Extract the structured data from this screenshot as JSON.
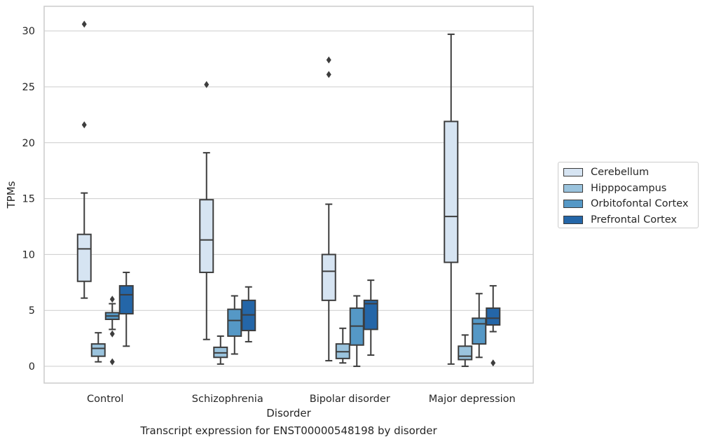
{
  "caption": "Transcript expression for ENST00000548198 by disorder",
  "chart_data": {
    "type": "box",
    "xlabel": "Disorder",
    "ylabel": "TPMs",
    "ylim": [
      -1.5,
      32.2
    ],
    "yticks": [
      0,
      5,
      10,
      15,
      20,
      25,
      30
    ],
    "grid": "horizontal",
    "legend_position": "right",
    "categories": [
      "Control",
      "Schizophrenia",
      "Bipolar disorder",
      "Major depression"
    ],
    "series": [
      {
        "name": "Cerebellum",
        "color": "#d6e4f2",
        "boxes": [
          {
            "whislo": 6.1,
            "q1": 7.6,
            "med": 10.5,
            "q3": 11.8,
            "whishi": 15.5,
            "fliers": [
              21.6,
              30.6
            ]
          },
          {
            "whislo": 2.4,
            "q1": 8.4,
            "med": 11.3,
            "q3": 14.9,
            "whishi": 19.1,
            "fliers": [
              25.2
            ]
          },
          {
            "whislo": 0.5,
            "q1": 5.9,
            "med": 8.5,
            "q3": 10.0,
            "whishi": 14.5,
            "fliers": [
              26.1,
              27.4
            ]
          },
          {
            "whislo": 0.2,
            "q1": 9.3,
            "med": 13.4,
            "q3": 21.9,
            "whishi": 29.7,
            "fliers": []
          }
        ]
      },
      {
        "name": "Hipppocampus",
        "color": "#9ac3dd",
        "boxes": [
          {
            "whislo": 0.4,
            "q1": 0.9,
            "med": 1.6,
            "q3": 2.0,
            "whishi": 3.0,
            "fliers": []
          },
          {
            "whislo": 0.2,
            "q1": 0.8,
            "med": 1.2,
            "q3": 1.7,
            "whishi": 2.7,
            "fliers": []
          },
          {
            "whislo": 0.3,
            "q1": 0.7,
            "med": 1.3,
            "q3": 2.0,
            "whishi": 3.4,
            "fliers": []
          },
          {
            "whislo": 0.0,
            "q1": 0.6,
            "med": 0.9,
            "q3": 1.8,
            "whishi": 2.8,
            "fliers": []
          }
        ]
      },
      {
        "name": "Orbitofontal Cortex",
        "color": "#5598c6",
        "boxes": [
          {
            "whislo": 3.3,
            "q1": 4.2,
            "med": 4.5,
            "q3": 4.8,
            "whishi": 5.6,
            "fliers": [
              6.0,
              2.9,
              0.4
            ]
          },
          {
            "whislo": 1.1,
            "q1": 2.7,
            "med": 4.1,
            "q3": 5.1,
            "whishi": 6.3,
            "fliers": []
          },
          {
            "whislo": 0.0,
            "q1": 1.9,
            "med": 3.6,
            "q3": 5.2,
            "whishi": 6.3,
            "fliers": []
          },
          {
            "whislo": 0.8,
            "q1": 2.0,
            "med": 3.8,
            "q3": 4.3,
            "whishi": 6.5,
            "fliers": []
          }
        ]
      },
      {
        "name": "Prefrontal Cortex",
        "color": "#2466a8",
        "boxes": [
          {
            "whislo": 1.8,
            "q1": 4.7,
            "med": 6.4,
            "q3": 7.2,
            "whishi": 8.4,
            "fliers": []
          },
          {
            "whislo": 2.2,
            "q1": 3.2,
            "med": 4.6,
            "q3": 5.9,
            "whishi": 7.1,
            "fliers": []
          },
          {
            "whislo": 1.0,
            "q1": 3.3,
            "med": 5.6,
            "q3": 5.9,
            "whishi": 7.7,
            "fliers": []
          },
          {
            "whislo": 3.1,
            "q1": 3.7,
            "med": 4.3,
            "q3": 5.2,
            "whishi": 7.2,
            "fliers": [
              0.3
            ]
          }
        ]
      }
    ]
  }
}
